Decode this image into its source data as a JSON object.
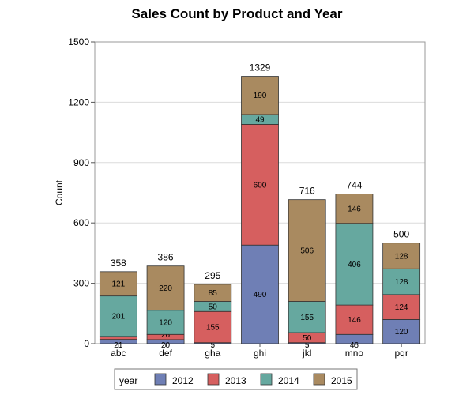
{
  "chart_data": {
    "type": "bar",
    "stacked": true,
    "title": "Sales Count by Product and Year",
    "xlabel": "",
    "ylabel": "Count",
    "ylim": [
      0,
      1500
    ],
    "yticks": [
      0,
      300,
      600,
      900,
      1200,
      1500
    ],
    "grid": true,
    "categories": [
      "abc",
      "def",
      "gha",
      "ghi",
      "jkl",
      "mno",
      "pqr"
    ],
    "totals": [
      358,
      386,
      295,
      1329,
      716,
      744,
      500
    ],
    "legend_title": "year",
    "legend_position": "bottom",
    "series": [
      {
        "name": "2012",
        "color": "#6f7fb5",
        "values": [
          21,
          20,
          5,
          490,
          5,
          46,
          120
        ]
      },
      {
        "name": "2013",
        "color": "#d65f5f",
        "values": [
          15,
          26,
          155,
          600,
          50,
          146,
          124
        ]
      },
      {
        "name": "2014",
        "color": "#66a89f",
        "values": [
          201,
          120,
          50,
          49,
          155,
          406,
          128
        ]
      },
      {
        "name": "2015",
        "color": "#a98a60",
        "values": [
          121,
          220,
          85,
          190,
          506,
          146,
          128
        ]
      }
    ]
  }
}
